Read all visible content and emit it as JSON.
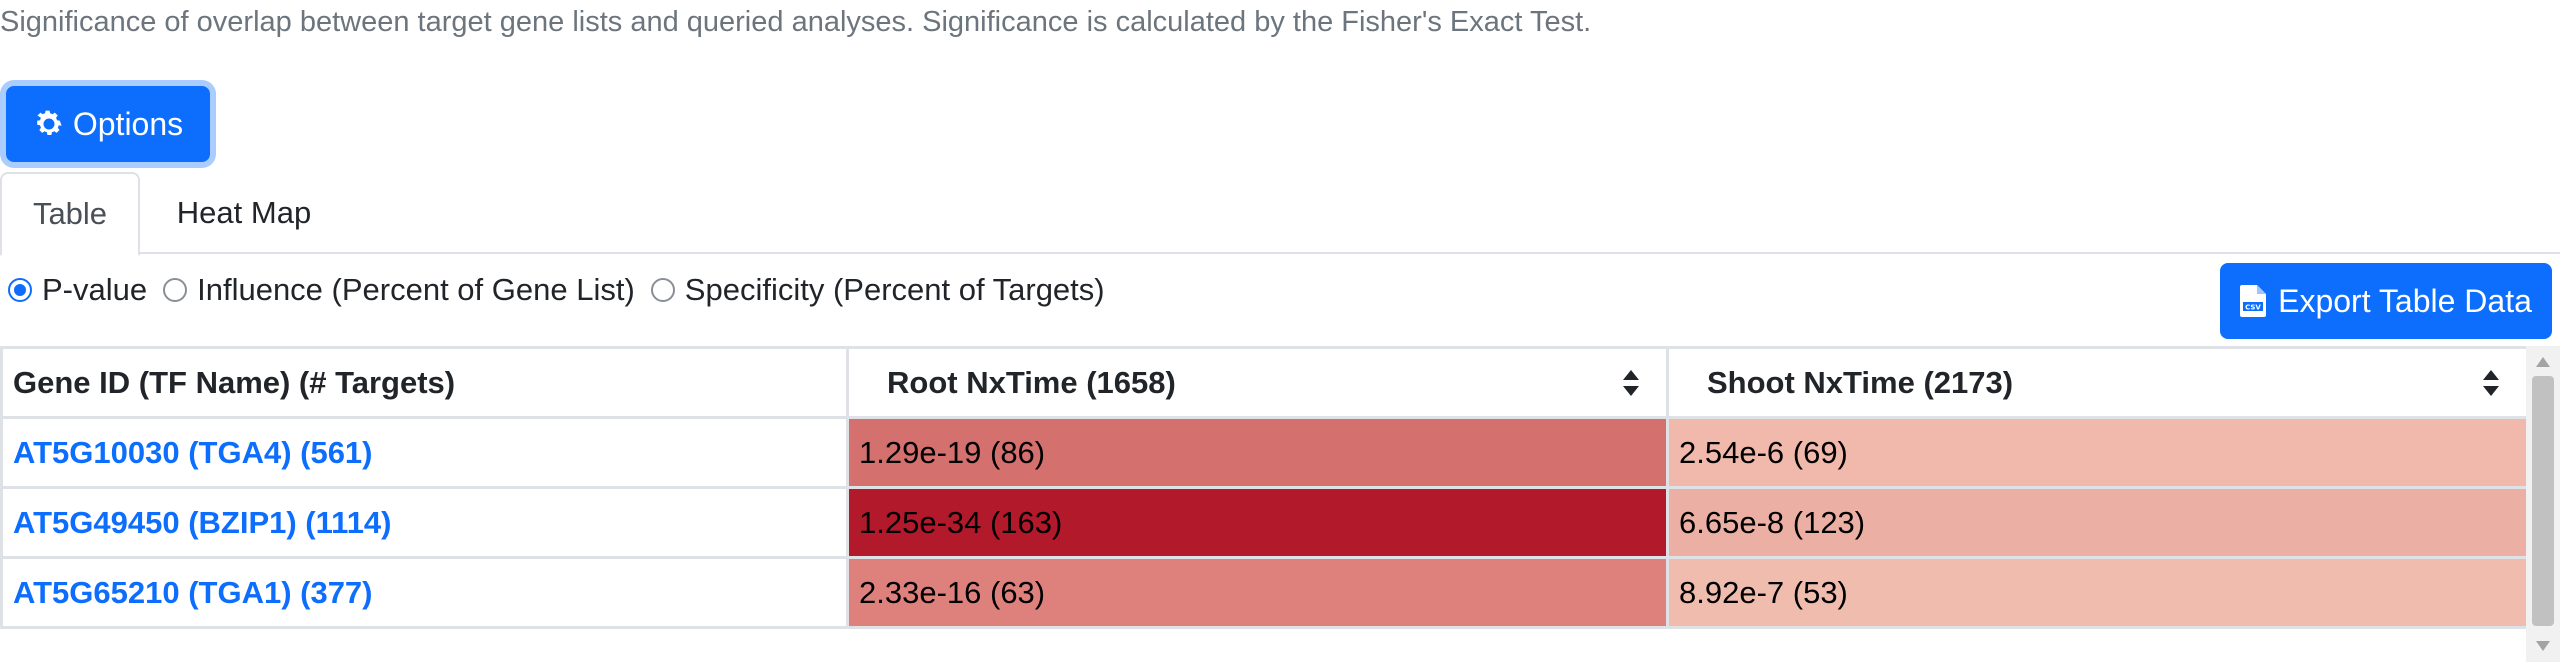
{
  "description": "Significance of overlap between target gene lists and queried analyses. Significance is calculated by the Fisher's Exact Test.",
  "options_button": {
    "label": "Options",
    "icon": "gear-icon"
  },
  "tabs": [
    {
      "label": "Table",
      "active": true
    },
    {
      "label": "Heat Map",
      "active": false
    }
  ],
  "radios": [
    {
      "label": "P-value",
      "checked": true
    },
    {
      "label": "Influence (Percent of Gene List)",
      "checked": false
    },
    {
      "label": "Specificity (Percent of Targets)",
      "checked": false
    }
  ],
  "export_button": {
    "label": "Export Table Data",
    "icon": "csv-file-icon"
  },
  "table": {
    "headers": [
      "Gene ID (TF Name) (# Targets)",
      "Root NxTime (1658)",
      "Shoot NxTime (2173)"
    ],
    "rows": [
      {
        "gene": "AT5G10030 (TGA4) (561)",
        "root": "1.29e-19 (86)",
        "shoot": "2.54e-6 (69)",
        "root_color": "#d4706d",
        "shoot_color": "#f0b9ab"
      },
      {
        "gene": "AT5G49450 (BZIP1) (1114)",
        "root": "1.25e-34 (163)",
        "shoot": "6.65e-8 (123)",
        "root_color": "#b2192b",
        "shoot_color": "#ebb0a3"
      },
      {
        "gene": "AT5G65210 (TGA1) (377)",
        "root": "2.33e-16 (63)",
        "shoot": "8.92e-7 (53)",
        "root_color": "#de817d",
        "shoot_color": "#efbcae"
      }
    ]
  },
  "colors": {
    "accent": "#0d6efd",
    "link": "#0d6efd",
    "muted_text": "#6c757d"
  }
}
